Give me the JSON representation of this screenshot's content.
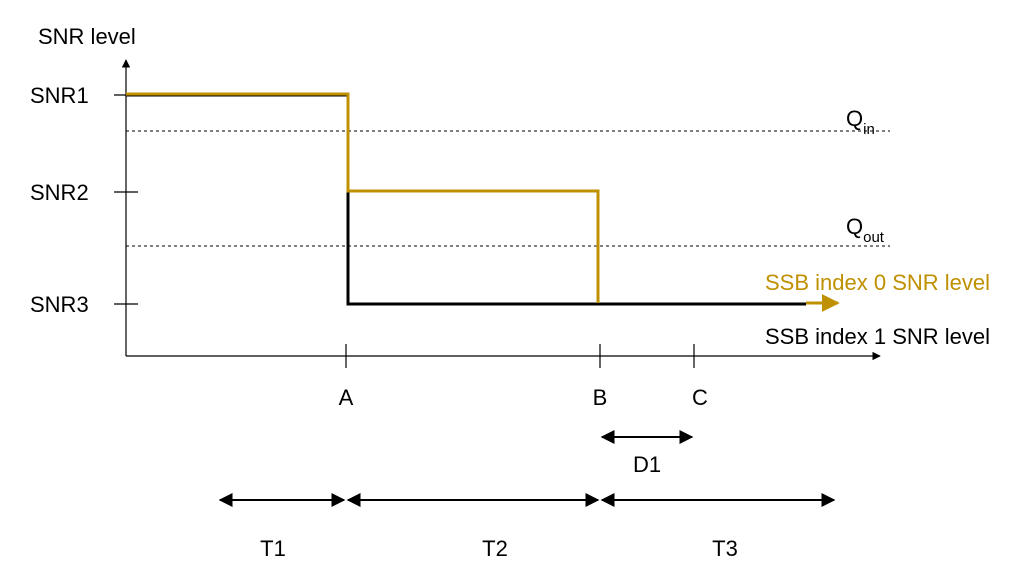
{
  "axes": {
    "y_title": "SNR level",
    "y_levels": [
      "SNR1",
      "SNR2",
      "SNR3"
    ],
    "x_marks": [
      "A",
      "B",
      "C"
    ]
  },
  "thresholds": {
    "q_in": {
      "base": "Q",
      "sub": "in"
    },
    "q_out": {
      "base": "Q",
      "sub": "out"
    }
  },
  "series": {
    "ssb0": {
      "label": "SSB index 0 SNR level",
      "color": "#BF9000"
    },
    "ssb1": {
      "label": "SSB index 1 SNR level",
      "color": "#000000"
    }
  },
  "durations": {
    "d1": "D1",
    "t1": "T1",
    "t2": "T2",
    "t3": "T3"
  }
}
